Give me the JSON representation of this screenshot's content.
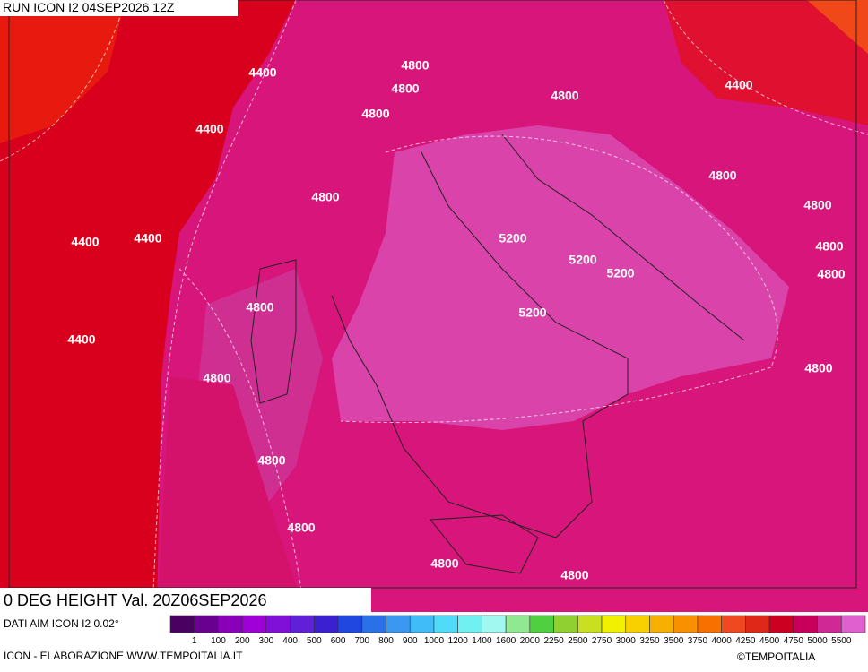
{
  "header": {
    "title": "RUN ICON I2 04SEP2026 12Z"
  },
  "map": {
    "contour_labels": [
      4400,
      4800,
      4800,
      4800,
      4400,
      4800,
      4400,
      4800,
      4800,
      4800,
      4400,
      4400,
      5200,
      5200,
      5200,
      4800,
      4800,
      4800,
      5200,
      4400,
      4800,
      4800,
      4800,
      4800,
      4800,
      4800
    ]
  },
  "footer": {
    "variable": "0 DEG HEIGHT Val. 20Z06SEP2026",
    "source": "DATI AIM ICON I2 0.02°",
    "credit": "ICON - ELABORAZIONE WWW.TEMPOITALIA.IT",
    "copyright": "©TEMPOITALIA"
  },
  "colorbar": {
    "labels": [
      1,
      100,
      200,
      300,
      400,
      500,
      600,
      700,
      800,
      900,
      1000,
      1200,
      1400,
      1600,
      2000,
      2250,
      2500,
      2750,
      3000,
      3250,
      3500,
      3750,
      4000,
      4250,
      4500,
      4750,
      5000,
      5500
    ],
    "colors": [
      "#4a0060",
      "#6a0090",
      "#8a00b8",
      "#a000d8",
      "#8010d8",
      "#6020d8",
      "#3a20d0",
      "#2048e0",
      "#2a70e8",
      "#3a98f0",
      "#40bcf8",
      "#50dcf8",
      "#70f0f0",
      "#a0f8f0",
      "#90e890",
      "#50d040",
      "#90d030",
      "#c8e020",
      "#f0f000",
      "#f8d000",
      "#f8b000",
      "#f89000",
      "#f87000",
      "#f04820",
      "#e02818",
      "#cc0020",
      "#c8005c",
      "#d02894",
      "#e060d0"
    ]
  }
}
